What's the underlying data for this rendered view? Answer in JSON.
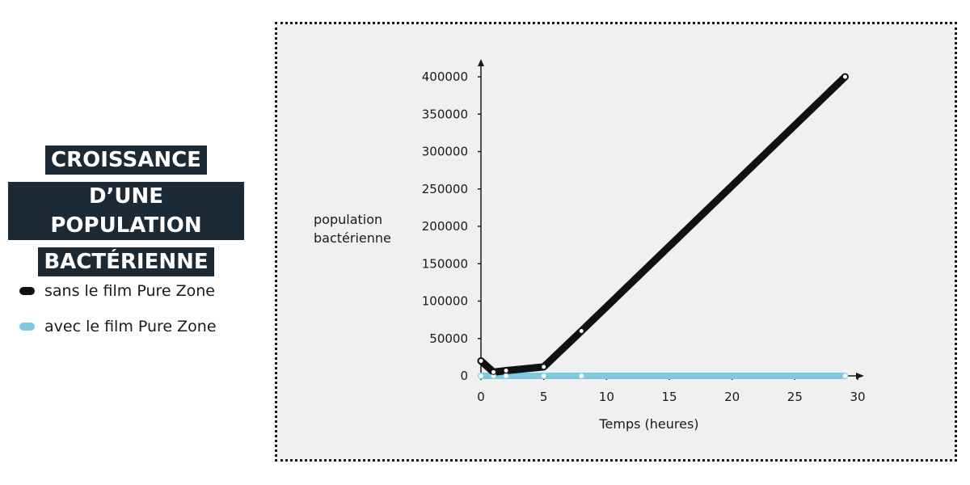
{
  "title": {
    "lines": [
      "CROISSANCE",
      "D’UNE POPULATION",
      "BACTÉRIENNE"
    ]
  },
  "legend": {
    "items": [
      {
        "label": "sans le film Pure Zone",
        "color": "#111111"
      },
      {
        "label": "avec le film Pure Zone",
        "color": "#7ec8e3"
      }
    ]
  },
  "colors": {
    "title_bg": "#1c2a36",
    "frame_bg": "#f0f0f0",
    "series_without": "#111111",
    "series_with": "#7ec8e3"
  },
  "chart_data": {
    "type": "line",
    "ylabel": [
      "population",
      "bactérienne"
    ],
    "xlabel": "Temps (heures)",
    "xlim": [
      0,
      30
    ],
    "ylim": [
      0,
      400000
    ],
    "xticks": [
      0,
      5,
      10,
      15,
      20,
      25,
      30
    ],
    "yticks": [
      0,
      50000,
      100000,
      150000,
      200000,
      250000,
      300000,
      350000,
      400000
    ],
    "grid": false,
    "series": [
      {
        "name": "sans le film Pure Zone",
        "color": "#111111",
        "x": [
          0,
          1,
          2,
          5,
          8,
          29
        ],
        "y": [
          20000,
          5000,
          7000,
          12000,
          60000,
          400000
        ]
      },
      {
        "name": "avec le film Pure Zone",
        "color": "#7ec8e3",
        "x": [
          0,
          1,
          2,
          5,
          8,
          29
        ],
        "y": [
          0,
          0,
          0,
          0,
          0,
          0
        ]
      }
    ]
  }
}
